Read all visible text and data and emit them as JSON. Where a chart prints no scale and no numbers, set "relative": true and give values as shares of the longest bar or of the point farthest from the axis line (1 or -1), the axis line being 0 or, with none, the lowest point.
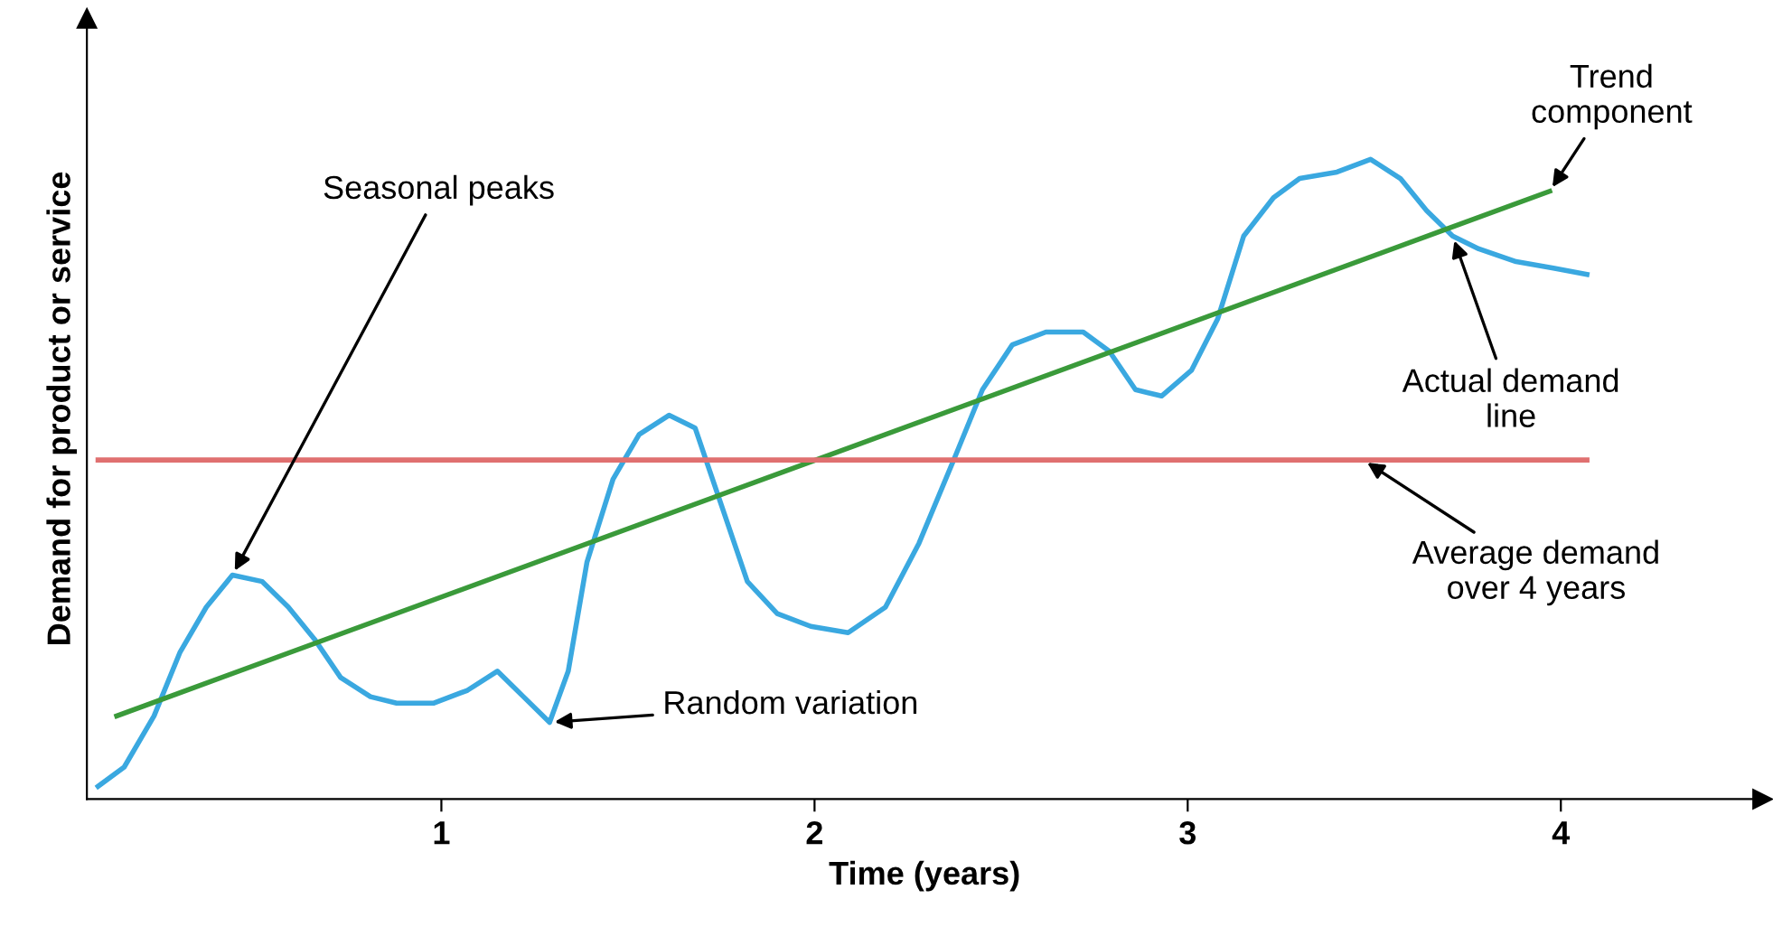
{
  "chart_data": {
    "type": "line",
    "relative": true,
    "xlabel": "Time (years)",
    "ylabel": "Demand for product or service",
    "xlim": [
      0.05,
      4.54
    ],
    "xticks": [
      1,
      2,
      3,
      4
    ],
    "grid": false,
    "marker": "none",
    "line_style": "solid",
    "series": [
      {
        "color": "#3aa8e0",
        "x": [
          0.08,
          0.15,
          0.23,
          0.3,
          0.37,
          0.44,
          0.52,
          0.59,
          0.66,
          0.73,
          0.81,
          0.88,
          0.98,
          1.07,
          1.15,
          1.22,
          1.29,
          1.34,
          1.39,
          1.46,
          1.53,
          1.61,
          1.68,
          1.75,
          1.82,
          1.9,
          1.99,
          2.09,
          2.19,
          2.28,
          2.38,
          2.45,
          2.53,
          2.62,
          2.72,
          2.79,
          2.86,
          2.93,
          3.01,
          3.08,
          3.15,
          3.23,
          3.3,
          3.4,
          3.49,
          3.57,
          3.64,
          3.71,
          3.78,
          3.88,
          3.98,
          4.07
        ],
        "values": [
          0.02,
          0.05,
          0.13,
          0.23,
          0.3,
          0.35,
          0.34,
          0.3,
          0.25,
          0.19,
          0.16,
          0.15,
          0.15,
          0.17,
          0.2,
          0.16,
          0.12,
          0.2,
          0.37,
          0.5,
          0.57,
          0.6,
          0.58,
          0.46,
          0.34,
          0.29,
          0.27,
          0.26,
          0.3,
          0.4,
          0.54,
          0.64,
          0.71,
          0.73,
          0.73,
          0.7,
          0.64,
          0.63,
          0.67,
          0.75,
          0.88,
          0.94,
          0.97,
          0.98,
          1.0,
          0.97,
          0.92,
          0.88,
          0.86,
          0.84,
          0.83,
          0.82
        ]
      },
      {
        "color": "#3a9a3a",
        "x": [
          0.13,
          3.97
        ],
        "values": [
          0.13,
          0.95
        ]
      },
      {
        "color": "#e07070",
        "x": [
          0.08,
          4.07
        ],
        "values": [
          0.53,
          0.53
        ]
      }
    ],
    "annotations": [
      {
        "text": "Seasonal peaks",
        "x": 0.44,
        "y": 0.35
      },
      {
        "text": "Random variation",
        "x": 1.29,
        "y": 0.12
      },
      {
        "text": "Trend\ncomponent",
        "x": 3.97,
        "y": 0.95
      },
      {
        "text": "Actual demand\nline",
        "x": 3.71,
        "y": 0.88
      },
      {
        "text": "Average demand\nover 4 years",
        "x": 3.47,
        "y": 0.53
      }
    ]
  }
}
